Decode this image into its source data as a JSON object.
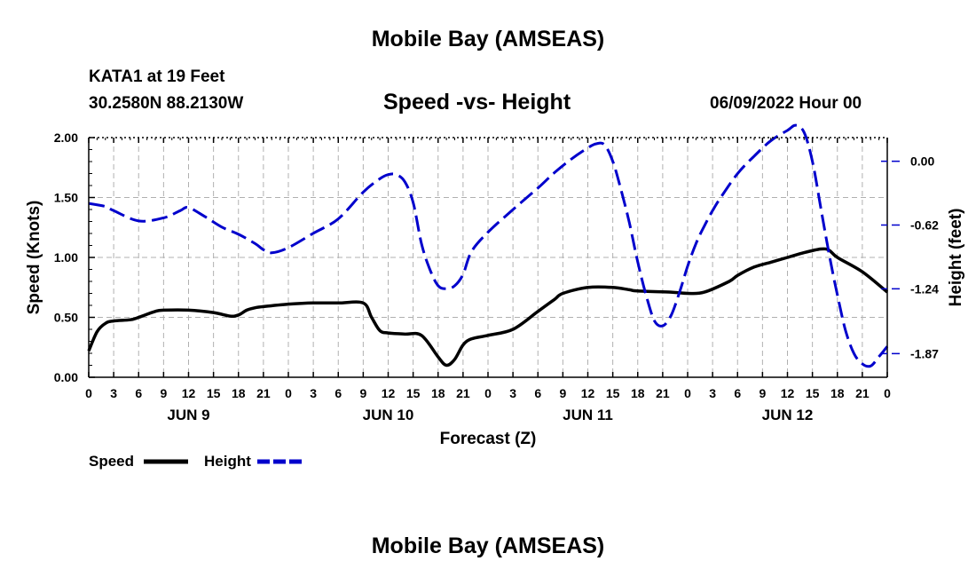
{
  "page": {
    "title_top": "Mobile Bay (AMSEAS)",
    "title_bottom": "Mobile Bay (AMSEAS)",
    "station": "KATA1 at 19 Feet",
    "coords": "30.2580N  88.2130W",
    "subtitle": "Speed -vs- Height",
    "datetime": "06/09/2022 Hour 00"
  },
  "legend": {
    "speed_label": "Speed",
    "height_label": "Height"
  },
  "colors": {
    "speed": "#000000",
    "height": "#0000cc",
    "grid": "#b0b0b0"
  },
  "chart_data": {
    "type": "line",
    "xlabel": "Forecast (Z)",
    "ylabel_left": "Speed (Knots)",
    "ylabel_right": "Height (feet)",
    "x_range_hours": [
      0,
      96
    ],
    "x_tick_labels": [
      "0",
      "3",
      "6",
      "9",
      "12",
      "15",
      "18",
      "21",
      "0",
      "3",
      "6",
      "9",
      "12",
      "15",
      "18",
      "21",
      "0",
      "3",
      "6",
      "9",
      "12",
      "15",
      "18",
      "21",
      "0",
      "3",
      "6",
      "9",
      "12",
      "15",
      "18",
      "21",
      "0"
    ],
    "day_labels": [
      {
        "label": "JUN 9",
        "hour": 12
      },
      {
        "label": "JUN 10",
        "hour": 36
      },
      {
        "label": "JUN 11",
        "hour": 60
      },
      {
        "label": "JUN 12",
        "hour": 84
      }
    ],
    "ylim_left": [
      0,
      2.0
    ],
    "yticks_left": [
      "0.00",
      "0.50",
      "1.00",
      "1.50",
      "2.00"
    ],
    "yticks_left_values": [
      0,
      0.5,
      1.0,
      1.5,
      2.0
    ],
    "yticks_right": [
      "0.00",
      "-0.62",
      "-1.24",
      "-1.87"
    ],
    "yticks_right_values": [
      0.0,
      -0.62,
      -1.24,
      -1.87
    ],
    "ylim_right": [
      -2.1,
      0.23
    ],
    "grid": true,
    "series": [
      {
        "name": "Speed",
        "axis": "left",
        "style": "solid",
        "x": [
          0,
          1,
          2,
          3,
          5,
          6,
          8,
          9,
          12,
          15,
          17,
          18,
          19,
          20,
          21,
          24,
          27,
          30,
          33,
          34,
          35,
          36,
          38,
          40,
          42,
          43,
          44,
          45,
          46,
          48,
          51,
          54,
          56,
          57,
          60,
          63,
          65,
          66,
          70,
          72,
          74,
          77,
          78,
          80,
          82,
          84,
          86,
          88,
          89,
          90,
          93,
          96
        ],
        "y": [
          0.22,
          0.38,
          0.45,
          0.47,
          0.48,
          0.5,
          0.55,
          0.56,
          0.56,
          0.54,
          0.51,
          0.52,
          0.56,
          0.58,
          0.59,
          0.61,
          0.62,
          0.62,
          0.62,
          0.5,
          0.39,
          0.37,
          0.36,
          0.35,
          0.17,
          0.1,
          0.15,
          0.27,
          0.32,
          0.35,
          0.4,
          0.55,
          0.65,
          0.7,
          0.75,
          0.75,
          0.73,
          0.72,
          0.71,
          0.7,
          0.71,
          0.8,
          0.85,
          0.92,
          0.96,
          1.0,
          1.04,
          1.07,
          1.06,
          1.0,
          0.88,
          0.71
        ]
      },
      {
        "name": "Height",
        "axis": "right",
        "style": "dashed",
        "x": [
          0,
          2,
          3,
          6,
          9,
          11,
          12,
          14,
          16,
          18,
          20,
          21,
          22,
          24,
          27,
          30,
          33,
          35,
          36,
          37,
          38,
          39,
          40,
          41,
          42,
          43,
          44,
          45,
          46,
          48,
          51,
          54,
          56,
          58,
          60,
          61,
          62,
          63,
          64,
          65,
          66,
          67,
          68,
          69,
          70,
          71,
          72,
          73,
          74,
          75,
          76,
          78,
          80,
          82,
          84,
          85,
          86,
          87,
          88,
          89,
          90,
          91,
          92,
          93,
          94,
          95,
          96
        ],
        "y": [
          -0.41,
          -0.44,
          -0.48,
          -0.58,
          -0.55,
          -0.48,
          -0.45,
          -0.54,
          -0.64,
          -0.71,
          -0.8,
          -0.86,
          -0.89,
          -0.84,
          -0.7,
          -0.56,
          -0.3,
          -0.17,
          -0.13,
          -0.13,
          -0.2,
          -0.4,
          -0.8,
          -1.05,
          -1.21,
          -1.24,
          -1.21,
          -1.1,
          -0.88,
          -0.69,
          -0.47,
          -0.26,
          -0.11,
          0.02,
          0.13,
          0.17,
          0.16,
          0.0,
          -0.28,
          -0.6,
          -0.98,
          -1.3,
          -1.55,
          -1.6,
          -1.5,
          -1.28,
          -1.02,
          -0.8,
          -0.63,
          -0.48,
          -0.35,
          -0.12,
          0.05,
          0.2,
          0.3,
          0.35,
          0.28,
          0.0,
          -0.45,
          -0.9,
          -1.3,
          -1.65,
          -1.87,
          -1.97,
          -1.99,
          -1.9,
          -1.8
        ]
      }
    ]
  }
}
